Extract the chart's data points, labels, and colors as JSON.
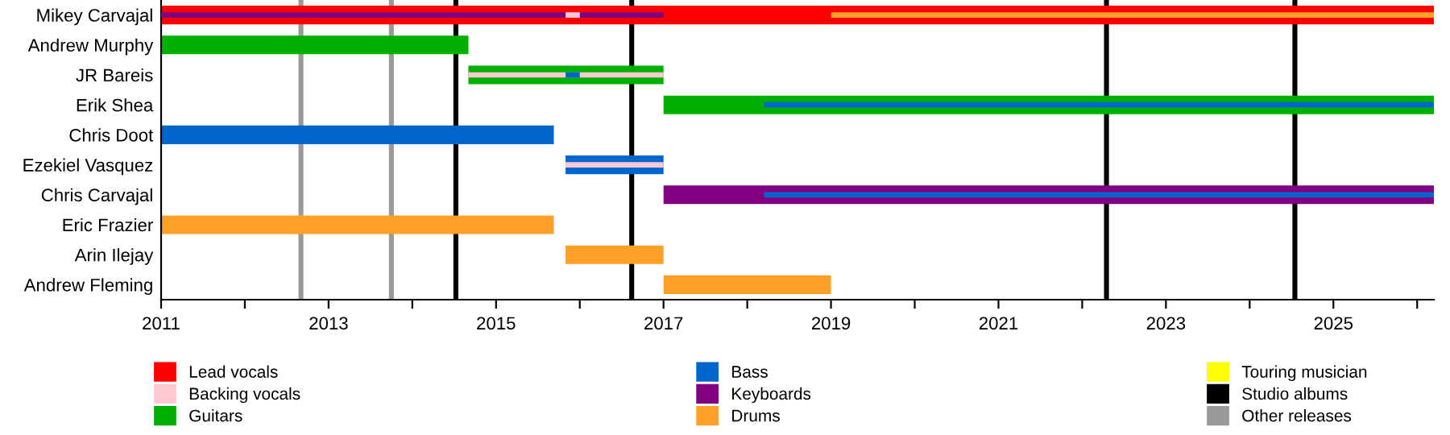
{
  "chart_data": {
    "type": "bar",
    "orientation": "horizontal",
    "categories": [
      "Mikey Carvajal",
      "Andrew Murphy",
      "JR Bareis",
      "Erik Shea",
      "Chris Doot",
      "Ezekiel Vasquez",
      "Chris Carvajal",
      "Eric Frazier",
      "Arin Ilejay",
      "Andrew Fleming"
    ],
    "series": [
      {
        "name": "Lead vocals",
        "color": "#ff0000",
        "base": [
          2011,
          null,
          null,
          null,
          null,
          null,
          null,
          null,
          null,
          null
        ],
        "values": [
          15.2,
          null,
          null,
          null,
          null,
          null,
          null,
          null,
          null,
          null
        ]
      },
      {
        "name": "Backing vocals",
        "color": "#ffc8d2",
        "base": [
          2015.83,
          null,
          2014.67,
          null,
          null,
          2015.83,
          null,
          null,
          null,
          null
        ],
        "values": [
          0.17,
          null,
          2.33,
          null,
          null,
          1.17,
          null,
          null,
          null,
          null
        ]
      },
      {
        "name": "Guitars",
        "color": "#00b000",
        "base": [
          null,
          2011,
          2014.67,
          2017,
          null,
          null,
          null,
          null,
          null,
          null
        ],
        "values": [
          null,
          3.67,
          2.33,
          9.2,
          null,
          null,
          null,
          null,
          null,
          null
        ]
      },
      {
        "name": "Bass",
        "color": "#0066cc",
        "base": [
          null,
          null,
          null,
          null,
          2011,
          2015.83,
          null,
          null,
          null,
          null
        ],
        "values": [
          null,
          null,
          null,
          null,
          4.69,
          1.17,
          null,
          null,
          null,
          null
        ]
      },
      {
        "name": "Keyboards",
        "color": "#800080",
        "base": [
          null,
          null,
          null,
          null,
          null,
          null,
          2017,
          null,
          null,
          null
        ],
        "values": [
          null,
          null,
          null,
          null,
          null,
          null,
          9.2,
          null,
          null,
          null
        ]
      },
      {
        "name": "Drums",
        "color": "#ffa028",
        "base": [
          null,
          null,
          null,
          null,
          null,
          null,
          null,
          2011,
          2015.83,
          2017
        ],
        "values": [
          null,
          null,
          null,
          null,
          null,
          null,
          null,
          4.69,
          1.17,
          2.0
        ]
      },
      {
        "name": "Touring musician",
        "color": "#ffff00",
        "base": [
          null,
          null,
          null,
          null,
          null,
          null,
          null,
          null,
          null,
          null
        ],
        "values": [
          null,
          null,
          null,
          null,
          null,
          null,
          null,
          null,
          null,
          null
        ]
      },
      {
        "color": "#800080",
        "base": [
          2011,
          null,
          null,
          null,
          null,
          null,
          null,
          null,
          null,
          null
        ],
        "values": [
          6.0,
          null,
          null,
          null,
          null,
          null,
          null,
          null,
          null,
          null
        ]
      },
      {
        "color": "#ffa028",
        "base": [
          2019,
          null,
          null,
          null,
          null,
          null,
          null,
          null,
          null,
          null
        ],
        "values": [
          7.2,
          null,
          null,
          null,
          null,
          null,
          null,
          null,
          null,
          null
        ]
      },
      {
        "color": "#0066cc",
        "base": [
          null,
          null,
          2015.83,
          2018.2,
          null,
          null,
          2018.2,
          null,
          null,
          null
        ],
        "values": [
          null,
          null,
          0.17,
          8.0,
          null,
          null,
          8.0,
          null,
          null,
          null
        ]
      }
    ],
    "ref_lines": [
      {
        "axis": "x",
        "value": 2014.52,
        "color": "#000000",
        "label": "Studio albums"
      },
      {
        "axis": "x",
        "value": 2012.67,
        "color": "#999999",
        "label": "Other releases"
      },
      {
        "axis": "x",
        "value": 2013.75,
        "color": "#999999"
      },
      {
        "axis": "x",
        "value": 2016.62,
        "color": "#000000"
      },
      {
        "axis": "x",
        "value": 2022.29,
        "color": "#000000"
      },
      {
        "axis": "x",
        "value": 2024.54,
        "color": "#000000"
      }
    ],
    "xlim": [
      2011,
      2026.2
    ],
    "xticks": [
      2011,
      {
        "value": 2012,
        "label": null
      },
      2013,
      {
        "value": 2014,
        "label": null
      },
      2015,
      {
        "value": 2016,
        "label": null
      },
      2017,
      {
        "value": 2018,
        "label": null
      },
      2019,
      {
        "value": 2020,
        "label": null
      },
      2021,
      {
        "value": 2022,
        "label": null
      },
      2023,
      {
        "value": 2024,
        "label": null
      },
      2025,
      {
        "value": 2026,
        "label": null
      }
    ],
    "grid": false,
    "legend": "bottom"
  }
}
